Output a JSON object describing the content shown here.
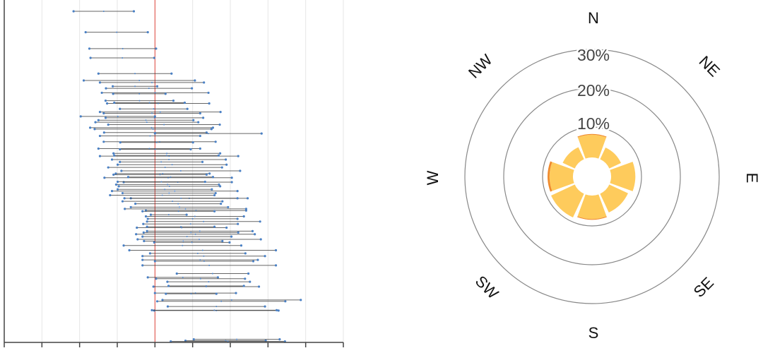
{
  "chart_data": [
    {
      "type": "range",
      "title": "",
      "xlabel": "",
      "ylabel": "",
      "xlim": [
        0,
        9
      ],
      "ylim": [
        0,
        100
      ],
      "x_ticks": [
        0,
        1,
        2,
        3,
        4,
        5,
        6,
        7,
        8,
        9
      ],
      "reference_line": 4,
      "grid": true,
      "colors": {
        "line": "#333333",
        "point": "#4a80c4",
        "reference": "#e0463c",
        "grid": "#e6e6e6"
      },
      "intervals": [
        [
          3.3,
          1.84,
          3.44
        ],
        [
          9.4,
          2.16,
          3.81
        ],
        [
          14.2,
          2.26,
          4.03
        ],
        [
          16.9,
          2.29,
          3.98
        ],
        [
          21.5,
          2.5,
          4.44
        ],
        [
          23.5,
          2.11,
          5.06
        ],
        [
          24.1,
          2.54,
          5.3
        ],
        [
          25.2,
          2.88,
          4.06
        ],
        [
          25.8,
          2.7,
          4.98
        ],
        [
          27.1,
          2.59,
          5.42
        ],
        [
          27.4,
          2.89,
          4.28
        ],
        [
          29.4,
          2.69,
          4.49
        ],
        [
          30.2,
          2.73,
          5.44
        ],
        [
          30.0,
          2.92,
          4.79
        ],
        [
          31.8,
          3.07,
          4.86
        ],
        [
          32.7,
          2.54,
          5.74
        ],
        [
          33.1,
          2.64,
          5.2
        ],
        [
          34.0,
          2.03,
          4.0
        ],
        [
          34.4,
          2.69,
          5.28
        ],
        [
          35.1,
          2.5,
          5.02
        ],
        [
          35.7,
          2.42,
          5.15
        ],
        [
          36.4,
          2.76,
          5.72
        ],
        [
          37.3,
          2.28,
          5.54
        ],
        [
          37.7,
          2.4,
          5.5
        ],
        [
          38.7,
          2.65,
          5.37
        ],
        [
          39.0,
          4.0,
          6.83
        ],
        [
          39.7,
          2.54,
          5.2
        ],
        [
          41.4,
          2.64,
          5.61
        ],
        [
          41.6,
          3.08,
          5.01
        ],
        [
          43.4,
          2.5,
          5.2
        ],
        [
          43.6,
          3.07,
          4.95
        ],
        [
          44.8,
          2.9,
          5.73
        ],
        [
          45.6,
          2.54,
          6.21
        ],
        [
          45.4,
          2.92,
          5.69
        ],
        [
          46.6,
          2.86,
          5.88
        ],
        [
          47.3,
          3.07,
          5.26
        ],
        [
          48.1,
          3.01,
          5.9
        ],
        [
          48.9,
          2.76,
          5.78
        ],
        [
          49.9,
          3.11,
          6.26
        ],
        [
          50.7,
          2.96,
          5.45
        ],
        [
          51.0,
          2.9,
          5.37
        ],
        [
          51.9,
          2.66,
          6.04
        ],
        [
          51.7,
          3.29,
          5.54
        ],
        [
          53.2,
          3.17,
          6.04
        ],
        [
          53.1,
          3.01,
          5.33
        ],
        [
          53.9,
          2.97,
          5.7
        ],
        [
          54.4,
          3.04,
          5.73
        ],
        [
          55.3,
          3.01,
          5.51
        ],
        [
          55.8,
          2.86,
          6.19
        ],
        [
          56.4,
          3.14,
          5.61
        ],
        [
          57.0,
          2.81,
          5.58
        ],
        [
          57.9,
          3.36,
          6.46
        ],
        [
          57.9,
          3.19,
          6.19
        ],
        [
          58.8,
          3.14,
          5.79
        ],
        [
          59.5,
          3.48,
          5.75
        ],
        [
          60.5,
          3.36,
          5.94
        ],
        [
          61.0,
          3.2,
          6.42
        ],
        [
          61.5,
          3.76,
          6.42
        ],
        [
          61.7,
          3.67,
          5.58
        ],
        [
          62.7,
          3.89,
          4.84
        ],
        [
          63.2,
          3.76,
          6.36
        ],
        [
          63.9,
          3.81,
          6.19
        ],
        [
          64.7,
          3.79,
          6.79
        ],
        [
          65.4,
          3.69,
          6.2
        ],
        [
          66.5,
          3.52,
          5.9
        ],
        [
          66.2,
          3.79,
          5.58
        ],
        [
          67.5,
          3.79,
          6.59
        ],
        [
          68.4,
          3.5,
          6.65
        ],
        [
          67.9,
          3.7,
          6.21
        ],
        [
          69.1,
          3.67,
          6.03
        ],
        [
          69.9,
          3.54,
          6.81
        ],
        [
          70.4,
          3.71,
          5.79
        ],
        [
          70.8,
          3.98,
          5.98
        ],
        [
          71.7,
          3.17,
          6.29
        ],
        [
          73.1,
          3.32,
          7.21
        ],
        [
          74.0,
          3.87,
          6.4
        ],
        [
          74.8,
          3.67,
          6.92
        ],
        [
          75.9,
          3.67,
          6.73
        ],
        [
          76.3,
          4.0,
          6.61
        ],
        [
          77.5,
          3.67,
          7.21
        ],
        [
          79.9,
          4.58,
          6.48
        ],
        [
          81.0,
          3.81,
          5.67
        ],
        [
          81.4,
          4.03,
          6.39
        ],
        [
          82.3,
          4.33,
          6.52
        ],
        [
          83.7,
          3.96,
          6.76
        ],
        [
          83.5,
          4.36,
          6.36
        ],
        [
          85.6,
          4.0,
          6.15
        ],
        [
          85.8,
          4.29,
          5.63
        ],
        [
          87.6,
          4.2,
          7.87
        ],
        [
          88.0,
          4.06,
          7.46
        ],
        [
          89.5,
          4.34,
          6.92
        ],
        [
          90.7,
          3.98,
          7.28
        ],
        [
          90.6,
          3.92,
          7.23
        ],
        [
          99.1,
          5.03,
          7.31
        ],
        [
          99.5,
          4.81,
          6.94
        ],
        [
          99.7,
          4.42,
          7.45
        ]
      ]
    },
    {
      "type": "wind-rose",
      "title": "",
      "directions": [
        "N",
        "NE",
        "E",
        "SE",
        "S",
        "SW",
        "W",
        "NW"
      ],
      "radial_ticks": [
        10,
        20,
        30
      ],
      "radial_tick_labels": [
        "10%",
        "20%",
        "30%"
      ],
      "series": [
        {
          "values": [
            8.0,
            5.5,
            8.4,
            7.5,
            8.2,
            8.9,
            8.2,
            5.6
          ],
          "color": "#fecb5c"
        },
        {
          "values": [
            0.2,
            0,
            0,
            0,
            0.2,
            0,
            0.5,
            0
          ],
          "color": "#f08a2c"
        }
      ]
    }
  ]
}
